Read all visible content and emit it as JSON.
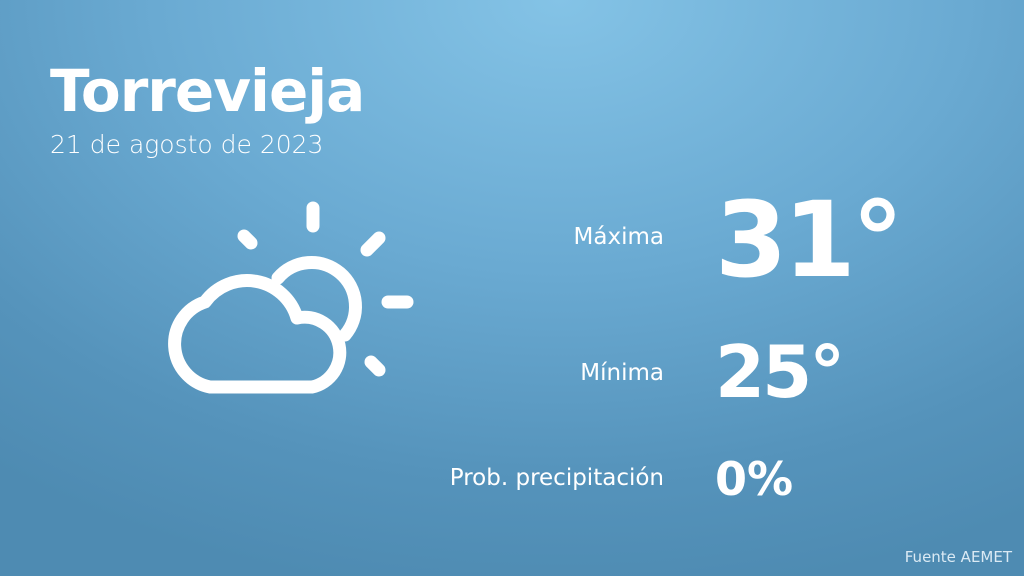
{
  "header": {
    "city": "Torrevieja",
    "date": "21 de agosto de 2023"
  },
  "weather": {
    "icon": "partly-cloudy-icon",
    "max_label": "Máxima",
    "max_value": "31°",
    "min_label": "Mínima",
    "min_value": "25°",
    "precip_label": "Prob. precipitación",
    "precip_value": "0%"
  },
  "footer": {
    "source": "Fuente AEMET"
  },
  "colors": {
    "background_top": "#84c3e6",
    "background_bottom": "#4e8bb2",
    "text": "#ffffff"
  }
}
